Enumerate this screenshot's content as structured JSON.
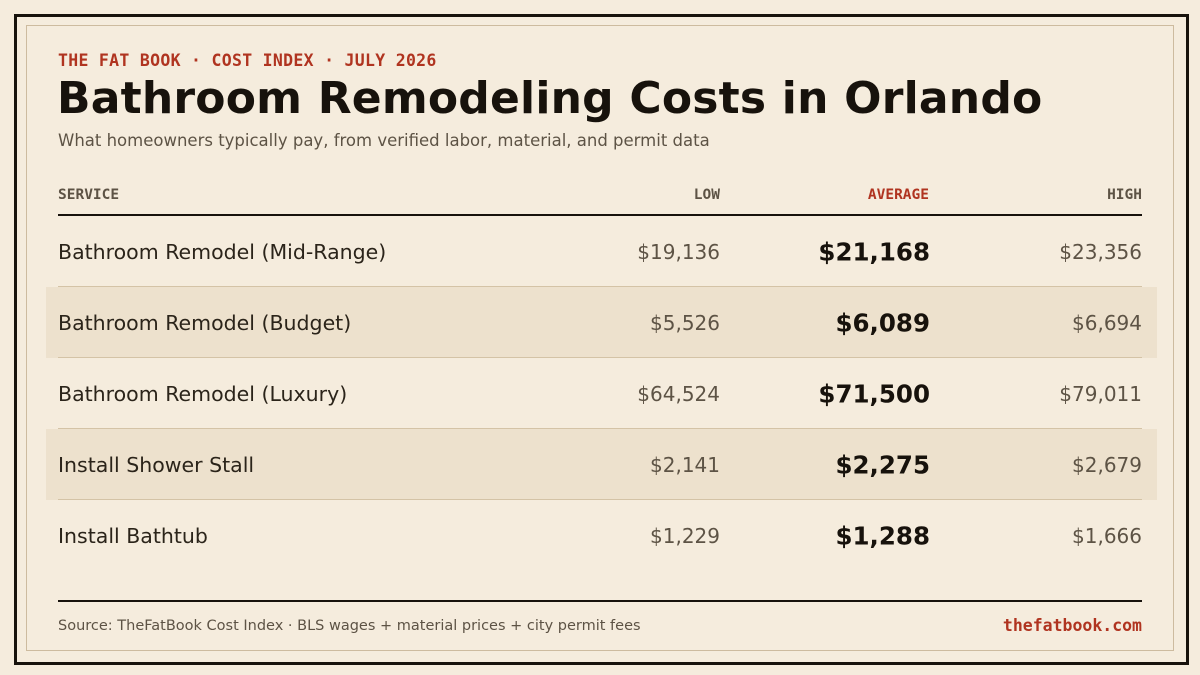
{
  "header": {
    "eyebrow": "THE FAT BOOK · COST INDEX · JULY 2026",
    "title": "Bathroom Remodeling Costs in Orlando",
    "subtitle": "What homeowners typically pay, from verified labor, material, and permit data"
  },
  "table": {
    "columns": {
      "service": "SERVICE",
      "low": "LOW",
      "average": "AVERAGE",
      "high": "HIGH"
    },
    "rows": [
      {
        "service": "Bathroom Remodel (Mid-Range)",
        "low": "$19,136",
        "average": "$21,168",
        "high": "$23,356"
      },
      {
        "service": "Bathroom Remodel (Budget)",
        "low": "$5,526",
        "average": "$6,089",
        "high": "$6,694"
      },
      {
        "service": "Bathroom Remodel (Luxury)",
        "low": "$64,524",
        "average": "$71,500",
        "high": "$79,011"
      },
      {
        "service": "Install Shower Stall",
        "low": "$2,141",
        "average": "$2,275",
        "high": "$2,679"
      },
      {
        "service": "Install Bathtub",
        "low": "$1,229",
        "average": "$1,288",
        "high": "$1,666"
      }
    ]
  },
  "footer": {
    "source": "Source: TheFatBook Cost Index · BLS wages + material prices + city permit fees",
    "site": "thefatbook.com"
  },
  "colors": {
    "background": "#f5ecdd",
    "accent": "#b03420",
    "ink": "#17120c",
    "row_shade": "#ede1cd"
  }
}
